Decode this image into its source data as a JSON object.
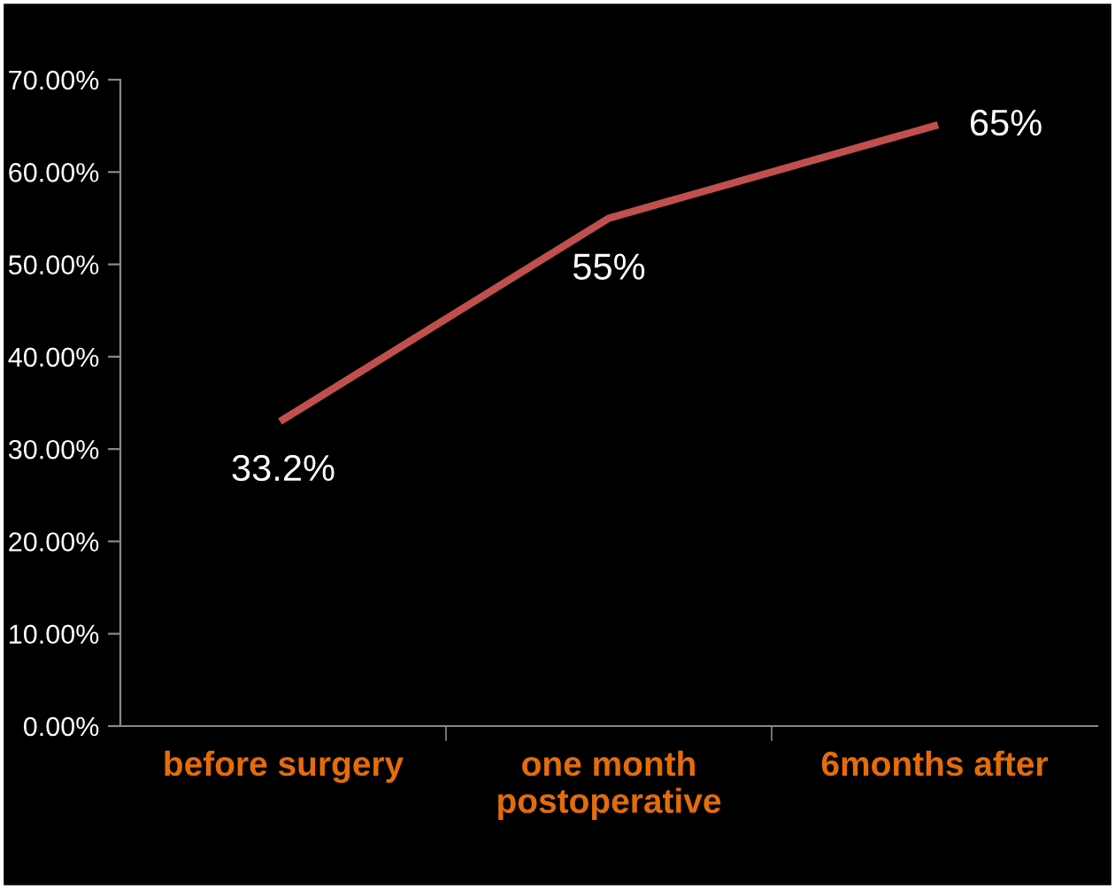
{
  "chart_data": {
    "type": "line",
    "categories": [
      "before surgery",
      "one month\npostoperative",
      "6months after"
    ],
    "series": [
      {
        "color": "#c0504d",
        "values": [
          33.2,
          55,
          65
        ],
        "value_labels": [
          "33.2%",
          "55%",
          "65%"
        ]
      }
    ],
    "ylim": [
      0,
      70
    ],
    "yticks": [
      {
        "value": 0,
        "label": "0.00%"
      },
      {
        "value": 10,
        "label": "10.00%"
      },
      {
        "value": 20,
        "label": "20.00%"
      },
      {
        "value": 30,
        "label": "30.00%"
      },
      {
        "value": 40,
        "label": "40.00%"
      },
      {
        "value": 50,
        "label": "50.00%"
      },
      {
        "value": 60,
        "label": "60.00%"
      },
      {
        "value": 70,
        "label": "70.00%"
      }
    ],
    "grid": false,
    "legend": false,
    "marker": "none",
    "line_style": "solid"
  }
}
